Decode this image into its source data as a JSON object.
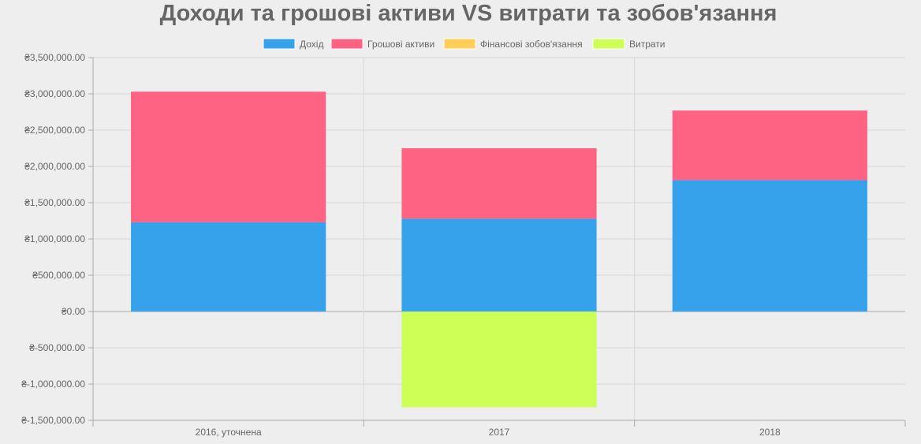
{
  "chart_data": {
    "type": "bar",
    "stacked": true,
    "title": "Доходи та грошові активи VS витрати та зобов'язання",
    "categories": [
      "2016, уточнена",
      "2017",
      "2018"
    ],
    "series": [
      {
        "name": "Дохід",
        "color": "#36a2eb",
        "values": [
          1230000,
          1280000,
          1810000
        ]
      },
      {
        "name": "Грошові активи",
        "color": "#ff6384",
        "values": [
          1800000,
          970000,
          960000
        ]
      },
      {
        "name": "Фінансові зобов'язання",
        "color": "#ffce56",
        "values": [
          0,
          0,
          0
        ]
      },
      {
        "name": "Витрати",
        "color": "#cdff56",
        "values": [
          0,
          -1320000,
          0
        ]
      }
    ],
    "ylim": [
      -1500000,
      3500000
    ],
    "ytick_labels": [
      "₴3,500,000.00",
      "₴3,000,000.00",
      "₴2,500,000.00",
      "₴2,000,000.00",
      "₴1,500,000.00",
      "₴1,000,000.00",
      "₴500,000.00",
      "₴0.00",
      "₴-500,000.00",
      "₴-1,000,000.00",
      "₴-1,500,000.00"
    ],
    "grid": true,
    "legend_position": "top"
  }
}
